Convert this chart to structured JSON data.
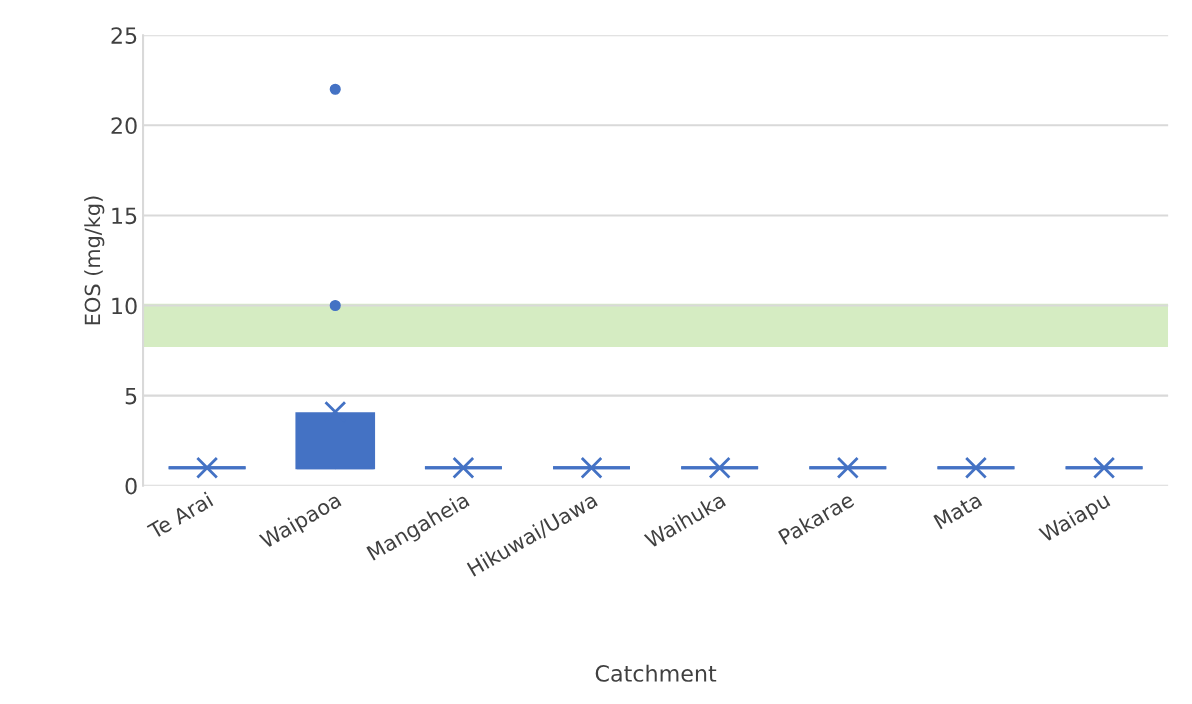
{
  "chart_data": {
    "type": "box",
    "xlabel": "Catchment",
    "ylabel": "EOS (mg/kg)",
    "categories": [
      "Te Arai",
      "Waipaoa",
      "Mangaheia",
      "Hikuwai/Uawa",
      "Waihuka",
      "Pakarae",
      "Mata",
      "Waiapu"
    ],
    "color": "#4472c4",
    "boxes": [
      {
        "low": 1,
        "q1": 1,
        "median": 1,
        "q3": 1,
        "high": 1,
        "mean": 1
      },
      {
        "low": 1,
        "q1": 1,
        "median": 1,
        "q3": 4,
        "high": 4,
        "mean": 4.1,
        "outliers": [
          10,
          22
        ]
      },
      {
        "low": 1,
        "q1": 1,
        "median": 1,
        "q3": 1,
        "high": 1,
        "mean": 1
      },
      {
        "low": 1,
        "q1": 1,
        "median": 1,
        "q3": 1,
        "high": 1,
        "mean": 1
      },
      {
        "low": 1,
        "q1": 1,
        "median": 1,
        "q3": 1,
        "high": 1,
        "mean": 1
      },
      {
        "low": 1,
        "q1": 1,
        "median": 1,
        "q3": 1,
        "high": 1,
        "mean": 1
      },
      {
        "low": 1,
        "q1": 1,
        "median": 1,
        "q3": 1,
        "high": 1,
        "mean": 1
      },
      {
        "low": 1,
        "q1": 1,
        "median": 1,
        "q3": 1,
        "high": 1,
        "mean": 1
      }
    ],
    "ylim": [
      0,
      25
    ],
    "yticks": [
      0,
      5,
      10,
      15,
      20,
      25
    ],
    "grid": "y",
    "bands": [
      {
        "axis": "y",
        "from": 7.7,
        "to": 10.1,
        "color": "#d5ecc2"
      }
    ]
  }
}
